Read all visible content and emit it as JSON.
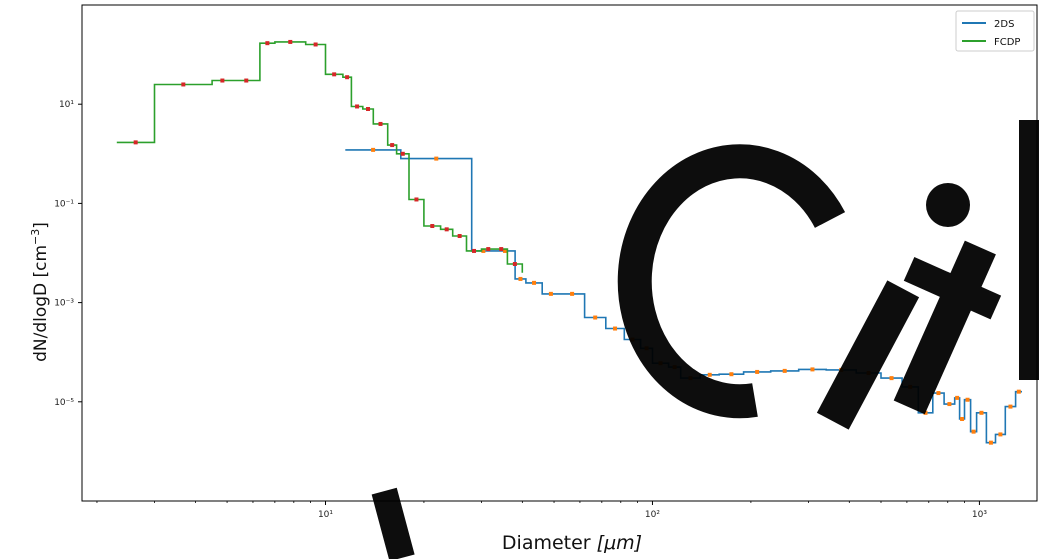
{
  "chart_data": {
    "type": "line",
    "title": "",
    "xlabel": "Diameter [$\\mu m$]",
    "xlabel_main": "Diameter ",
    "xlabel_unit": "[μm]",
    "ylabel": "dN/dlogD [cm$^{-3}$]",
    "ylabel_main": "dN/dlogD [cm",
    "ylabel_sup": "−3",
    "ylabel_close": "]",
    "x_scale": "log",
    "y_scale": "log",
    "xlim": [
      1.8,
      1500
    ],
    "ylim": [
      1e-07,
      1000
    ],
    "x_ticks": [
      {
        "value": 10,
        "label": "10¹"
      },
      {
        "value": 100,
        "label": "10²"
      },
      {
        "value": 1000,
        "label": "10³"
      }
    ],
    "y_ticks": [
      {
        "value": 1e-05,
        "label": "10⁻⁵"
      },
      {
        "value": 0.001,
        "label": "10⁻³"
      },
      {
        "value": 0.1,
        "label": "10⁻¹"
      },
      {
        "value": 10,
        "label": "10¹"
      }
    ],
    "grid": false,
    "legend_position": "top-right",
    "series": [
      {
        "name": "2DS",
        "color": "#1f77b4",
        "marker_color": "#ff7f0e",
        "steps": [
          [
            11.5,
            1.2
          ],
          [
            17,
            0.8
          ],
          [
            28,
            0.011
          ],
          [
            33,
            0.011
          ],
          [
            38,
            0.003
          ],
          [
            41,
            0.0025
          ],
          [
            46,
            0.0015
          ],
          [
            52,
            0.0015
          ],
          [
            62,
            0.0005
          ],
          [
            72,
            0.0003
          ],
          [
            82,
            0.00018
          ],
          [
            92,
            0.00012
          ],
          [
            100,
            6e-05
          ],
          [
            112,
            5e-05
          ],
          [
            122,
            3e-05
          ],
          [
            140,
            3.5e-05
          ],
          [
            160,
            3.6e-05
          ],
          [
            190,
            4e-05
          ],
          [
            230,
            4.2e-05
          ],
          [
            280,
            4.5e-05
          ],
          [
            340,
            4.4e-05
          ],
          [
            420,
            3.8e-05
          ],
          [
            500,
            3e-05
          ],
          [
            580,
            2e-05
          ],
          [
            650,
            6e-06
          ],
          [
            720,
            1.5e-05
          ],
          [
            780,
            9e-06
          ],
          [
            840,
            1.2e-05
          ],
          [
            870,
            4.5e-06
          ],
          [
            900,
            1.1e-05
          ],
          [
            940,
            2.5e-06
          ],
          [
            980,
            6e-06
          ],
          [
            1050,
            1.5e-06
          ],
          [
            1120,
            2.2e-06
          ],
          [
            1200,
            8e-06
          ],
          [
            1290,
            1.6e-05
          ],
          [
            1350,
            1.6e-05
          ]
        ]
      },
      {
        "name": "FCDP",
        "color": "#2ca02c",
        "marker_color": "#d62728",
        "steps": [
          [
            2.3,
            1.7
          ],
          [
            3,
            25
          ],
          [
            4.5,
            30
          ],
          [
            5.2,
            30
          ],
          [
            6.3,
            170
          ],
          [
            7,
            180
          ],
          [
            8.7,
            160
          ],
          [
            10,
            40
          ],
          [
            11.3,
            35
          ],
          [
            12,
            9
          ],
          [
            13,
            8
          ],
          [
            14,
            4
          ],
          [
            15.5,
            1.5
          ],
          [
            16.5,
            1.0
          ],
          [
            18,
            0.12
          ],
          [
            20,
            0.035
          ],
          [
            22.5,
            0.03
          ],
          [
            24.5,
            0.022
          ],
          [
            27,
            0.011
          ],
          [
            30,
            0.012
          ],
          [
            33,
            0.012
          ],
          [
            36,
            0.006
          ],
          [
            40,
            0.004
          ]
        ]
      }
    ]
  },
  "legend": {
    "items": [
      {
        "label": "2DS",
        "color": "#1f77b4"
      },
      {
        "label": "FCDP",
        "color": "#2ca02c"
      }
    ]
  }
}
